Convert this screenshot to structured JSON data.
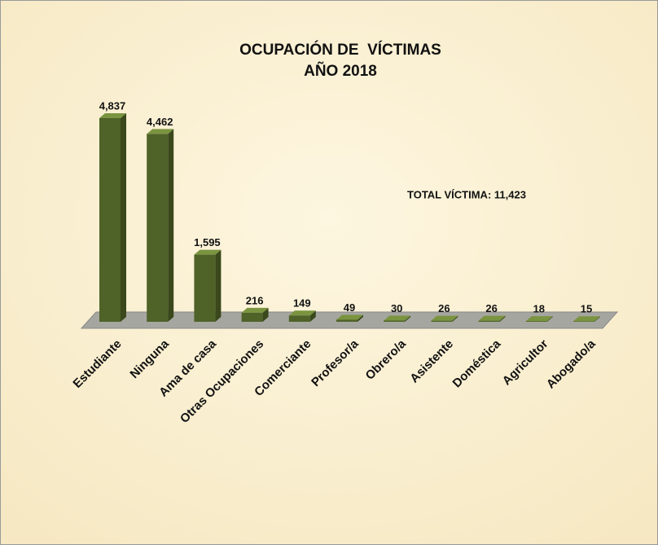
{
  "chart_data": {
    "type": "bar3d",
    "title": "OCUPACIÓN DE  VÍCTIMAS",
    "subtitle": "AÑO 2018",
    "annotation": "TOTAL VÍCTIMA: 11,423",
    "categories": [
      "Estudiante",
      "Ninguna",
      "Ama de casa",
      "Otras Ocupaciones",
      "Comerciante",
      "Profesor/a",
      "Obrero/a",
      "Asistente",
      "Doméstica",
      "Agricultor",
      "Abogado/a"
    ],
    "values": [
      4837,
      4462,
      1595,
      216,
      149,
      49,
      30,
      26,
      26,
      18,
      15
    ],
    "value_labels": [
      "4,837",
      "4,462",
      "1,595",
      "216",
      "149",
      "49",
      "30",
      "26",
      "26",
      "18",
      "15"
    ],
    "color": "#4f6228"
  }
}
